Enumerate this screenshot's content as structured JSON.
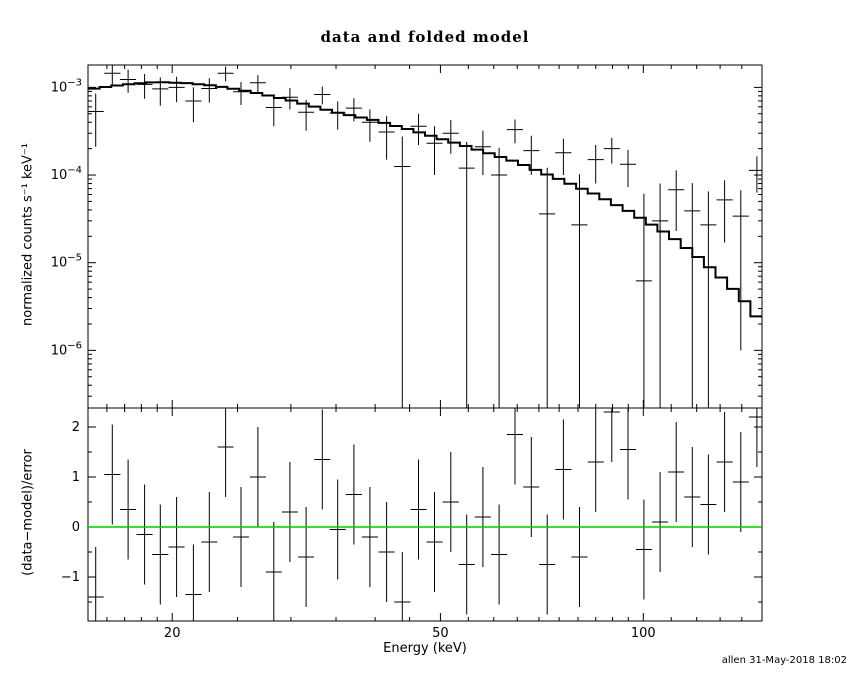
{
  "title": "data and folded model",
  "labels": {
    "xlabel": "Energy (keV)",
    "ylabel_top": "normalized counts s⁻¹ keV⁻¹",
    "ylabel_bottom": "(data−model)/error"
  },
  "watermark": "allen 31-May-2018 18:02",
  "chart_data": {
    "type": "scatter",
    "title": "data and folded model",
    "xlabel": "Energy (keV)",
    "ylabel_top": "normalized counts s⁻¹ keV⁻¹",
    "ylabel_bottom": "(data−model)/error",
    "xscale": "log",
    "xlim": [
      15,
      150
    ],
    "xticks": [
      {
        "v": 20,
        "label": "20"
      },
      {
        "v": 50,
        "label": "50"
      },
      {
        "v": 100,
        "label": "100"
      }
    ],
    "xminor": [
      16,
      17,
      18,
      19,
      25,
      30,
      35,
      40,
      45,
      55,
      60,
      65,
      70,
      75,
      80,
      85,
      90,
      95,
      110,
      120,
      130,
      140
    ],
    "top_panel": {
      "yscale": "log",
      "ylim": [
        2.2e-07,
        0.0018
      ],
      "yticks": [
        {
          "v": 0.001,
          "exp": "−3"
        },
        {
          "v": 0.0001,
          "exp": "−4"
        },
        {
          "v": 1e-05,
          "exp": "−5"
        },
        {
          "v": 1e-06,
          "exp": "−6"
        }
      ]
    },
    "bottom_panel": {
      "yscale": "linear",
      "ylim": [
        -1.88,
        2.38
      ],
      "yticks": [
        {
          "v": 2,
          "label": "2"
        },
        {
          "v": 1,
          "label": "1"
        },
        {
          "v": 0,
          "label": "0"
        },
        {
          "v": -1,
          "label": "−1"
        }
      ],
      "yminor": [
        -1.5,
        -0.5,
        0.5,
        1.5
      ],
      "zero_line": 0
    },
    "model_curve": [
      [
        15,
        0.00095
      ],
      [
        17,
        0.00108
      ],
      [
        19,
        0.00115
      ],
      [
        21,
        0.00112
      ],
      [
        23,
        0.00105
      ],
      [
        26,
        0.0009
      ],
      [
        30,
        0.00071
      ],
      [
        35,
        0.00052
      ],
      [
        40,
        0.00042
      ],
      [
        45,
        0.00033
      ],
      [
        50,
        0.00026
      ],
      [
        55,
        0.00021
      ],
      [
        60,
        0.00017
      ],
      [
        65,
        0.00014
      ],
      [
        70,
        0.00011
      ],
      [
        75,
        9e-05
      ],
      [
        80,
        7.3e-05
      ],
      [
        85,
        6e-05
      ],
      [
        90,
        4.8e-05
      ],
      [
        95,
        3.9e-05
      ],
      [
        100,
        3.1e-05
      ],
      [
        110,
        2e-05
      ],
      [
        120,
        1.2e-05
      ],
      [
        130,
        7e-06
      ],
      [
        140,
        4e-06
      ],
      [
        150,
        2e-06
      ]
    ],
    "data_points": [
      [
        15.4,
        0.00053,
        0.00032
      ],
      [
        16.3,
        0.00145,
        0.00038
      ],
      [
        17.2,
        0.00123,
        0.00036
      ],
      [
        18.2,
        0.00108,
        0.00034
      ],
      [
        19.2,
        0.00096,
        0.00034
      ],
      [
        20.3,
        0.001,
        0.00032
      ],
      [
        21.5,
        0.0007,
        0.0003
      ],
      [
        22.7,
        0.00097,
        0.0003
      ],
      [
        24.0,
        0.00145,
        0.00028
      ],
      [
        25.3,
        0.00089,
        0.00026
      ],
      [
        26.8,
        0.00113,
        0.00025
      ],
      [
        28.3,
        0.00059,
        0.00023
      ],
      [
        29.9,
        0.00077,
        0.00021
      ],
      [
        31.6,
        0.00052,
        0.0002
      ],
      [
        33.4,
        0.00083,
        0.00019
      ],
      [
        35.2,
        0.00051,
        0.00018
      ],
      [
        37.2,
        0.00058,
        0.00017
      ],
      [
        39.3,
        0.0004,
        0.00016
      ],
      [
        41.6,
        0.00031,
        0.00016
      ],
      [
        43.9,
        0.000125,
        0.00015
      ],
      [
        46.4,
        0.00036,
        0.00014
      ],
      [
        49.0,
        0.00023,
        0.00013
      ],
      [
        51.8,
        0.0003,
        0.000125
      ],
      [
        54.7,
        0.00012,
        0.00012
      ],
      [
        57.8,
        0.00021,
        0.00011
      ],
      [
        61.1,
        0.0001,
        0.000105
      ],
      [
        64.5,
        0.00033,
        0.0001
      ],
      [
        68.2,
        0.00019,
        9e-05
      ],
      [
        72.0,
        3.6e-05,
        8.5e-05
      ],
      [
        76.1,
        0.00018,
        8e-05
      ],
      [
        80.4,
        2.7e-05,
        7.5e-05
      ],
      [
        85.0,
        0.00015,
        7e-05
      ],
      [
        89.8,
        0.0002,
        6.5e-05
      ],
      [
        94.9,
        0.000133,
        6e-05
      ],
      [
        100.2,
        6.2e-06,
        5.5e-05
      ],
      [
        105.9,
        3e-05,
        5e-05
      ],
      [
        111.9,
        6.8e-05,
        4.5e-05
      ],
      [
        118.2,
        3.9e-05,
        4.2e-05
      ],
      [
        124.9,
        2.7e-05,
        3.8e-05
      ],
      [
        132.0,
        5.2e-05,
        3.5e-05
      ],
      [
        139.5,
        3.4e-05,
        3.3e-05
      ],
      [
        147.4,
        0.000113,
        5e-05
      ]
    ],
    "residuals": [
      [
        15.4,
        -1.4
      ],
      [
        16.3,
        1.05
      ],
      [
        17.2,
        0.35
      ],
      [
        18.2,
        -0.15
      ],
      [
        19.2,
        -0.55
      ],
      [
        20.3,
        -0.4
      ],
      [
        21.5,
        -1.35
      ],
      [
        22.7,
        -0.3
      ],
      [
        24.0,
        1.6
      ],
      [
        25.3,
        -0.2
      ],
      [
        26.8,
        1.0
      ],
      [
        28.3,
        -0.9
      ],
      [
        29.9,
        0.3
      ],
      [
        31.6,
        -0.6
      ],
      [
        33.4,
        1.35
      ],
      [
        35.2,
        -0.05
      ],
      [
        37.2,
        0.65
      ],
      [
        39.3,
        -0.2
      ],
      [
        41.6,
        -0.5
      ],
      [
        43.9,
        -1.5
      ],
      [
        46.4,
        0.35
      ],
      [
        49.0,
        -0.3
      ],
      [
        51.8,
        0.5
      ],
      [
        54.7,
        -0.75
      ],
      [
        57.8,
        0.2
      ],
      [
        61.1,
        -0.55
      ],
      [
        64.5,
        1.85
      ],
      [
        68.2,
        0.8
      ],
      [
        72.0,
        -0.75
      ],
      [
        76.1,
        1.15
      ],
      [
        80.4,
        -0.6
      ],
      [
        85.0,
        1.3
      ],
      [
        89.8,
        2.3
      ],
      [
        94.9,
        1.55
      ],
      [
        100.2,
        -0.45
      ],
      [
        105.9,
        0.1
      ],
      [
        111.9,
        1.1
      ],
      [
        118.2,
        0.6
      ],
      [
        124.9,
        0.45
      ],
      [
        132.0,
        1.3
      ],
      [
        139.5,
        0.9
      ],
      [
        147.4,
        2.2
      ]
    ],
    "residual_error": 1.0,
    "colors": {
      "data": "#000000",
      "model": "#000000",
      "zero_line": "#00cc00",
      "background": "#ffffff"
    },
    "legend": "none",
    "grid": "off"
  }
}
